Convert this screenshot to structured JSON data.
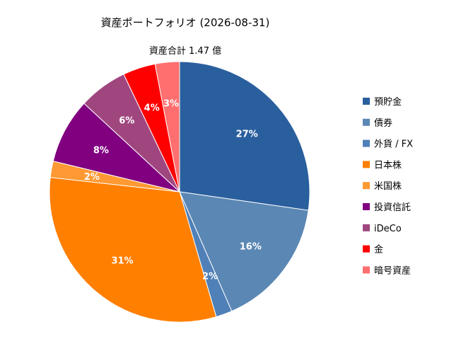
{
  "chart_data": {
    "type": "pie",
    "title": "資産ポートフォリオ (2026-08-31)",
    "subtitle": "資産合計 1.47 億",
    "legend_position": "right",
    "slices": [
      {
        "label": "預貯金",
        "value": 27,
        "display": "27%",
        "color": "#2A5F9E"
      },
      {
        "label": "債券",
        "value": 16,
        "display": "16%",
        "color": "#5B87B4"
      },
      {
        "label": "外貨 / FX",
        "value": 2,
        "display": "2%",
        "color": "#4F80B8"
      },
      {
        "label": "日本株",
        "value": 31,
        "display": "31%",
        "color": "#FF7F00"
      },
      {
        "label": "米国株",
        "value": 2,
        "display": "2%",
        "color": "#FF9933"
      },
      {
        "label": "投資信託",
        "value": 8,
        "display": "8%",
        "color": "#800080"
      },
      {
        "label": "iDeCo",
        "value": 6,
        "display": "6%",
        "color": "#A0467F"
      },
      {
        "label": "金",
        "value": 4,
        "display": "4%",
        "color": "#FF0000"
      },
      {
        "label": "暗号資産",
        "value": 3,
        "display": "3%",
        "color": "#FF6F6F"
      }
    ]
  }
}
